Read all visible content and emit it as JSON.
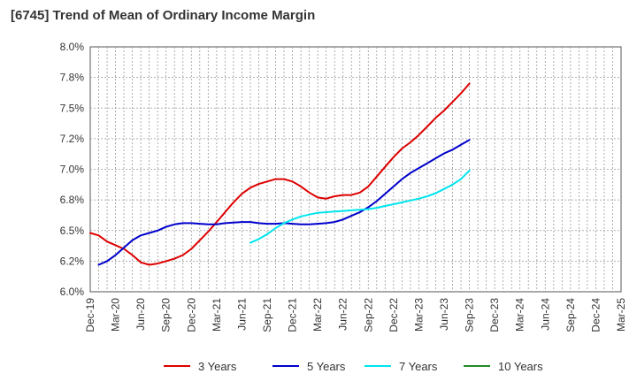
{
  "chart_data": {
    "type": "line",
    "title": "[6745]  Trend of Mean of Ordinary Income Margin",
    "xlabel": "",
    "ylabel": "",
    "y_tick_labels": [
      "6.0%",
      "6.2%",
      "6.5%",
      "6.8%",
      "7.0%",
      "7.2%",
      "7.5%",
      "7.8%",
      "8.0%"
    ],
    "ylim": [
      6.0,
      8.0
    ],
    "x_tick_labels": [
      "Dec-19",
      "Mar-20",
      "Jun-20",
      "Sep-20",
      "Dec-20",
      "Mar-21",
      "Jun-21",
      "Sep-21",
      "Dec-21",
      "Mar-22",
      "Jun-22",
      "Sep-22",
      "Dec-22",
      "Mar-23",
      "Jun-23",
      "Sep-23",
      "Dec-23",
      "Mar-24",
      "Jun-24",
      "Sep-24",
      "Dec-24",
      "Mar-25"
    ],
    "grid": true,
    "legend_position": "bottom",
    "series": [
      {
        "name": "3 Years",
        "color": "#dd0000",
        "points": [
          [
            0,
            6.48
          ],
          [
            1,
            6.46
          ],
          [
            2,
            6.41
          ],
          [
            3,
            6.38
          ],
          [
            4,
            6.35
          ],
          [
            5,
            6.3
          ],
          [
            6,
            6.24
          ],
          [
            7,
            6.22
          ],
          [
            8,
            6.23
          ],
          [
            9,
            6.25
          ],
          [
            10,
            6.27
          ],
          [
            11,
            6.3
          ],
          [
            12,
            6.35
          ],
          [
            13,
            6.42
          ],
          [
            14,
            6.49
          ],
          [
            15,
            6.57
          ],
          [
            16,
            6.65
          ],
          [
            17,
            6.73
          ],
          [
            18,
            6.8
          ],
          [
            19,
            6.85
          ],
          [
            20,
            6.88
          ],
          [
            21,
            6.9
          ],
          [
            22,
            6.92
          ],
          [
            23,
            6.92
          ],
          [
            24,
            6.9
          ],
          [
            25,
            6.86
          ],
          [
            26,
            6.81
          ],
          [
            27,
            6.77
          ],
          [
            28,
            6.76
          ],
          [
            29,
            6.78
          ],
          [
            30,
            6.79
          ],
          [
            31,
            6.79
          ],
          [
            32,
            6.81
          ],
          [
            33,
            6.86
          ],
          [
            34,
            6.94
          ],
          [
            35,
            7.02
          ],
          [
            36,
            7.1
          ],
          [
            37,
            7.17
          ],
          [
            38,
            7.22
          ],
          [
            39,
            7.28
          ],
          [
            40,
            7.35
          ],
          [
            41,
            7.42
          ],
          [
            42,
            7.48
          ],
          [
            43,
            7.55
          ],
          [
            44,
            7.62
          ],
          [
            45,
            7.7
          ]
        ]
      },
      {
        "name": "5 Years",
        "color": "#0000cc",
        "points": [
          [
            1,
            6.22
          ],
          [
            2,
            6.25
          ],
          [
            3,
            6.3
          ],
          [
            4,
            6.36
          ],
          [
            5,
            6.42
          ],
          [
            6,
            6.46
          ],
          [
            7,
            6.48
          ],
          [
            8,
            6.5
          ],
          [
            9,
            6.53
          ],
          [
            10,
            6.55
          ],
          [
            11,
            6.56
          ],
          [
            12,
            6.56
          ],
          [
            13,
            6.555
          ],
          [
            14,
            6.55
          ],
          [
            15,
            6.55
          ],
          [
            16,
            6.56
          ],
          [
            17,
            6.565
          ],
          [
            18,
            6.57
          ],
          [
            19,
            6.57
          ],
          [
            20,
            6.56
          ],
          [
            21,
            6.555
          ],
          [
            22,
            6.555
          ],
          [
            23,
            6.56
          ],
          [
            24,
            6.555
          ],
          [
            25,
            6.55
          ],
          [
            26,
            6.55
          ],
          [
            27,
            6.555
          ],
          [
            28,
            6.56
          ],
          [
            29,
            6.57
          ],
          [
            30,
            6.59
          ],
          [
            31,
            6.62
          ],
          [
            32,
            6.65
          ],
          [
            33,
            6.69
          ],
          [
            34,
            6.74
          ],
          [
            35,
            6.8
          ],
          [
            36,
            6.86
          ],
          [
            37,
            6.92
          ],
          [
            38,
            6.97
          ],
          [
            39,
            7.01
          ],
          [
            40,
            7.05
          ],
          [
            41,
            7.09
          ],
          [
            42,
            7.13
          ],
          [
            43,
            7.16
          ],
          [
            44,
            7.2
          ],
          [
            45,
            7.24
          ]
        ]
      },
      {
        "name": "7 Years",
        "color": "#00e5ee",
        "points": [
          [
            19,
            6.4
          ],
          [
            20,
            6.43
          ],
          [
            21,
            6.47
          ],
          [
            22,
            6.52
          ],
          [
            23,
            6.56
          ],
          [
            24,
            6.59
          ],
          [
            25,
            6.615
          ],
          [
            26,
            6.63
          ],
          [
            27,
            6.645
          ],
          [
            28,
            6.65
          ],
          [
            29,
            6.655
          ],
          [
            30,
            6.66
          ],
          [
            31,
            6.665
          ],
          [
            32,
            6.67
          ],
          [
            33,
            6.675
          ],
          [
            34,
            6.685
          ],
          [
            35,
            6.7
          ],
          [
            36,
            6.715
          ],
          [
            37,
            6.73
          ],
          [
            38,
            6.745
          ],
          [
            39,
            6.76
          ],
          [
            40,
            6.78
          ],
          [
            41,
            6.805
          ],
          [
            42,
            6.84
          ],
          [
            43,
            6.875
          ],
          [
            44,
            6.92
          ],
          [
            45,
            6.99
          ]
        ]
      },
      {
        "name": "10 Years",
        "color": "#228b22",
        "points": []
      }
    ]
  }
}
